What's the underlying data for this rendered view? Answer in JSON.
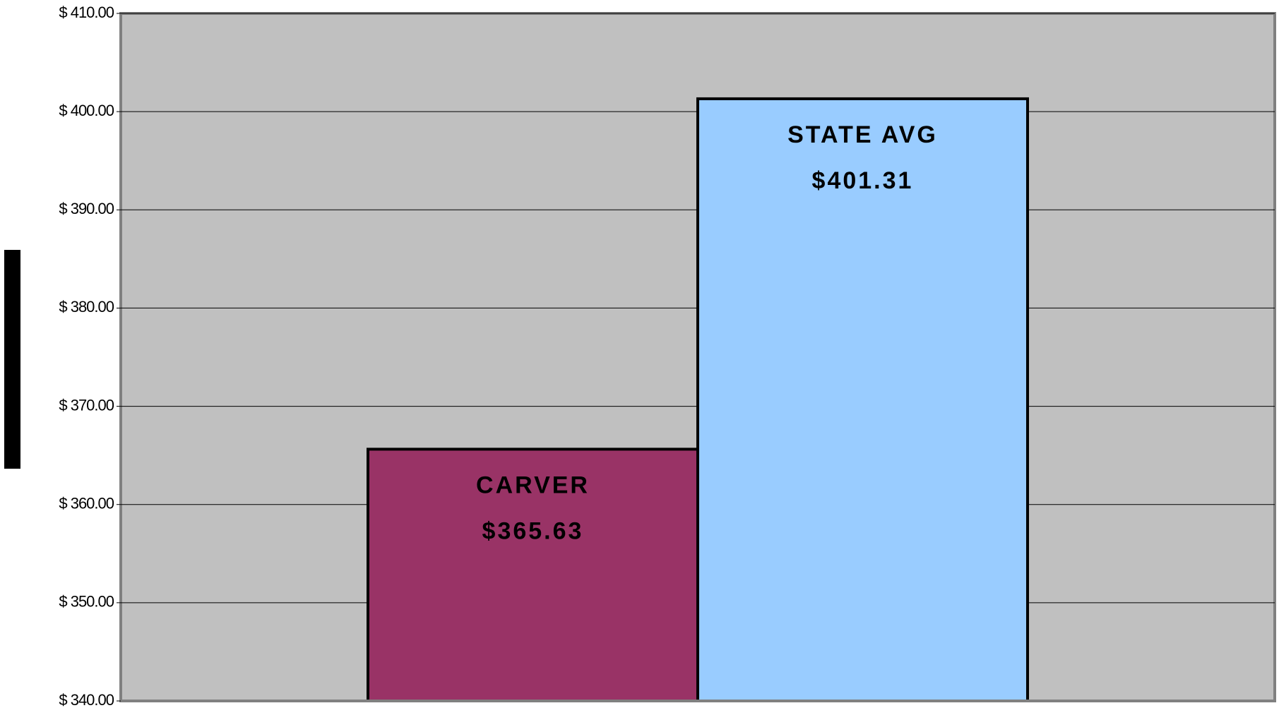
{
  "chart_data": {
    "type": "bar",
    "categories": [
      "CARVER",
      "STATE AVG"
    ],
    "values": [
      365.63,
      401.31
    ],
    "value_labels": [
      "$365.63",
      "$401.31"
    ],
    "colors": [
      "#993366",
      "#99ccff"
    ],
    "ylim": [
      340,
      410
    ],
    "yticks": [
      {
        "value": 340,
        "label": "$ 340.00"
      },
      {
        "value": 350,
        "label": "$ 350.00"
      },
      {
        "value": 360,
        "label": "$ 360.00"
      },
      {
        "value": 370,
        "label": "$ 370.00"
      },
      {
        "value": 380,
        "label": "$ 380.00"
      },
      {
        "value": 390,
        "label": "$ 390.00"
      },
      {
        "value": 400,
        "label": "$ 400.00"
      },
      {
        "value": 410,
        "label": "$ 410.00"
      }
    ],
    "grid": true
  }
}
